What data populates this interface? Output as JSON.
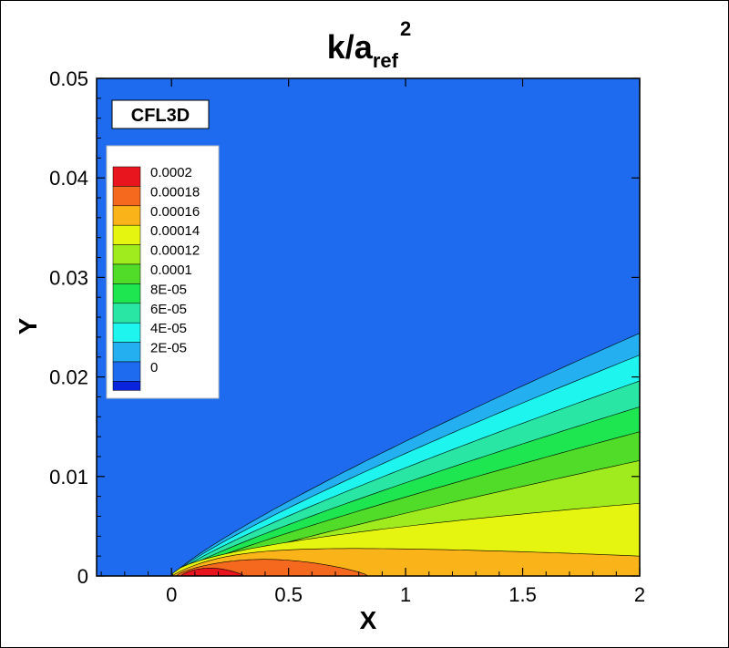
{
  "chart_data": {
    "type": "contour",
    "title": {
      "base": "k/a",
      "subscript": "ref",
      "superscript": "2"
    },
    "xlabel": "X",
    "ylabel": "Y",
    "xlim": [
      -0.32,
      2.0
    ],
    "ylim": [
      0,
      0.05
    ],
    "xticks": [
      0,
      0.5,
      1,
      1.5,
      2
    ],
    "xtick_labels": [
      "0",
      "0.5",
      "1",
      "1.5",
      "2"
    ],
    "yticks": [
      0,
      0.01,
      0.02,
      0.03,
      0.04,
      0.05
    ],
    "ytick_labels": [
      "0",
      "0.01",
      "0.02",
      "0.03",
      "0.04",
      "0.05"
    ],
    "background_color": "#1e6bf0",
    "annotation": "CFL3D",
    "legend_position": "top-left",
    "legend": [
      {
        "label": "0.0002",
        "color": "#e8141e"
      },
      {
        "label": "0.00018",
        "color": "#f5691e"
      },
      {
        "label": "0.00016",
        "color": "#fab419"
      },
      {
        "label": "0.00014",
        "color": "#e6f50f"
      },
      {
        "label": "0.00012",
        "color": "#a0eb1e"
      },
      {
        "label": "0.0001",
        "color": "#50dc28"
      },
      {
        "label": "8E-05",
        "color": "#1ee650"
      },
      {
        "label": "6E-05",
        "color": "#2ae6a5"
      },
      {
        "label": "4E-05",
        "color": "#1ef5ee"
      },
      {
        "label": "2E-05",
        "color": "#23aff0"
      },
      {
        "label": "0",
        "color": "#1e6bf0"
      },
      {
        "label": "",
        "color": "#0a23dc"
      }
    ],
    "contour_bands": [
      {
        "color": "#23aff0",
        "y_at_x2": 0.0244,
        "shape": 0.85
      },
      {
        "color": "#1ef5ee",
        "y_at_x2": 0.0222,
        "shape": 0.85
      },
      {
        "color": "#2ae6a5",
        "y_at_x2": 0.0196,
        "shape": 0.85
      },
      {
        "color": "#1ee650",
        "y_at_x2": 0.017,
        "shape": 0.86
      },
      {
        "color": "#50dc28",
        "y_at_x2": 0.0145,
        "shape": 0.87
      },
      {
        "color": "#a0eb1e",
        "y_at_x2": 0.0116,
        "shape": 0.88
      },
      {
        "color": "#e6f50f",
        "y_at_x2": 0.0073,
        "shape": 0.55
      }
    ],
    "inner_regions": [
      {
        "color": "#fab419",
        "x_start": 0.0,
        "x_end": 2.0,
        "y_peak": 0.003,
        "y_end": 0.002
      },
      {
        "color": "#f5691e",
        "x_start": 0.02,
        "x_end": 0.84,
        "y_peak": 0.0019,
        "y_end": 0.0
      },
      {
        "color": "#e8141e",
        "x_start": 0.04,
        "x_end": 0.31,
        "y_peak": 0.0009,
        "y_end": 0.0
      }
    ]
  }
}
